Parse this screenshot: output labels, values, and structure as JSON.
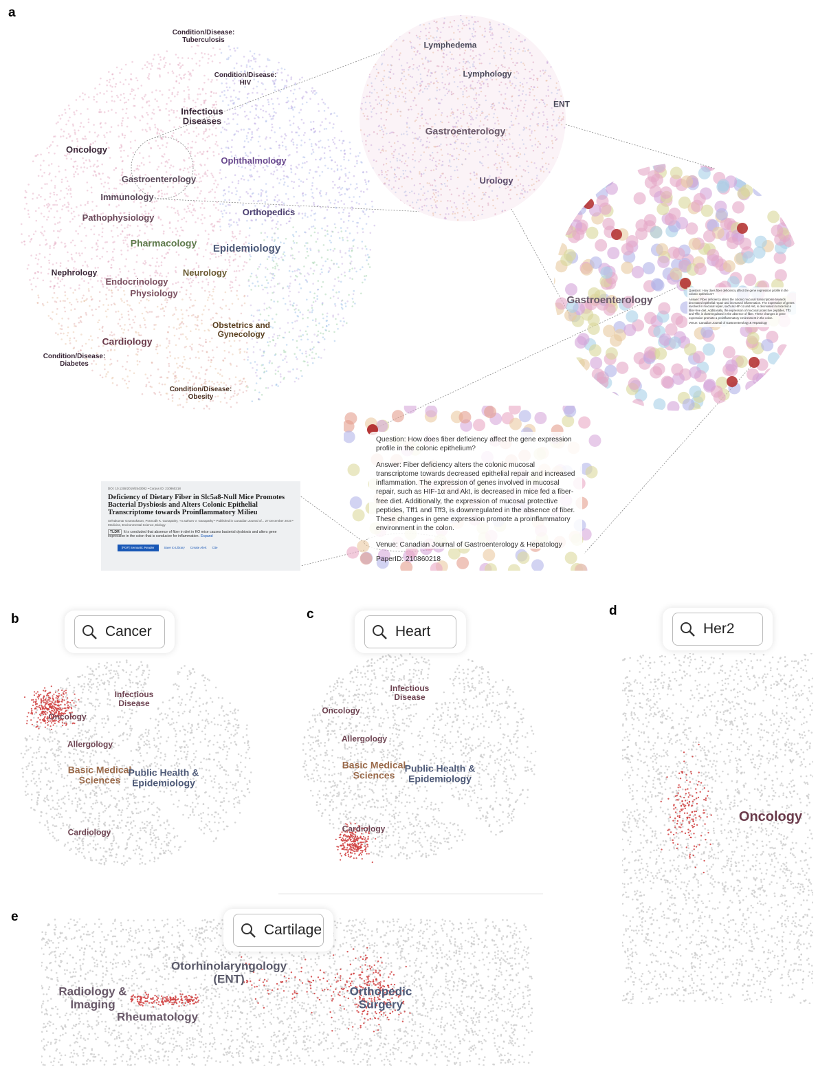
{
  "panel_labels": [
    "a",
    "b",
    "c",
    "d",
    "e"
  ],
  "panel_a": {
    "map_labels": [
      "Condition/Disease: Tuberculosis",
      "Condition/Disease: HIV",
      "Infectious Diseases",
      "Oncology",
      "Ophthalmology",
      "Gastroenterology",
      "Immunology",
      "Orthopedics",
      "Pathophysiology",
      "Pharmacology",
      "Epidemiology",
      "Nephrology",
      "Endocrinology",
      "Neurology",
      "Physiology",
      "Obstetrics and Gynecology",
      "Cardiology",
      "Condition/Disease: Diabetes",
      "Condition/Disease: Obesity"
    ],
    "zoom_labels": [
      "Lymphedema",
      "Lymphology",
      "ENT",
      "Gastroenterology",
      "Urology"
    ],
    "detail_label": "Gastroenterology",
    "tooltip": {
      "question": "Question: How does fiber deficiency affect the gene expression profile in the colonic epithelium?",
      "answer": "Answer: Fiber deficiency alters the colonic mucosal transcriptome towards decreased epithelial repair and increased inflammation. The expression of genes involved in mucosal repair, such as HIF-1α and Akt, is decreased in mice fed a fiber-free diet. Additionally, the expression of mucosal protective peptides, Tff1 and Tff3, is downregulated in the absence of fiber. These changes in gene expression promote a proinflammatory environment in the colon.",
      "venue": "Venue: Canadian Journal of Gastroenterology & Hepatology",
      "paper_id": "PaperID: 210860218"
    },
    "paper": {
      "meta": "DOI: 10.1155/2019/2543082 • Corpus ID: 210860218",
      "title": "Deficiency of Dietary Fiber in Slc5a8-Null Mice Promotes Bacterial Dysbiosis and Alters Colonic Epithelial Transcriptome towards Proinflammatory Milieu",
      "authors": "Selvakumar Gnanaskaran, Pramodh K. Ganapathy, +4 authors V. Ganapathy • Published in Canadian Journal of... 27 December 2019 •",
      "fields": "Medicine, Environmental Science, Biology",
      "tldr_tag": "TLDR",
      "tldr": "It is concluded that absence of fiber in diet in KO mice causes bacterial dysbiosis and alters gene expression in the colon that is conducive for inflammation.",
      "expand": "Expand",
      "buttons": [
        "[PDF] Semantic Reader",
        "Save to Library",
        "Create Alert",
        "Cite"
      ]
    }
  },
  "panel_b": {
    "search": "Cancer",
    "labels": [
      "Infectious Disease",
      "Oncology",
      "Allergology",
      "Basic Medical Sciences",
      "Public Health & Epidemiology",
      "Cardiology"
    ]
  },
  "panel_c": {
    "search": "Heart",
    "labels": [
      "Infectious Disease",
      "Oncology",
      "Allergology",
      "Basic Medical Sciences",
      "Public Health & Epidemiology",
      "Cardiology"
    ]
  },
  "panel_d": {
    "search": "Her2",
    "labels": [
      "Oncology"
    ]
  },
  "panel_e": {
    "search": "Cartilage",
    "labels": [
      "Otorhinolaryngology (ENT)",
      "Radiology & Imaging",
      "Orthopedic Surgery",
      "Rheumatology"
    ]
  }
}
